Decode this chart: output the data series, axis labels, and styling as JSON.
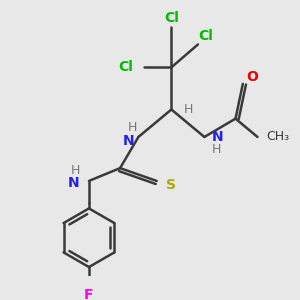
{
  "bg_color": "#e8e8e8",
  "bond_color": "#3a3a3a",
  "bond_width": 1.8,
  "figsize": [
    3.0,
    3.0
  ],
  "dpi": 100,
  "colors": {
    "Cl": "#00bb00",
    "N": "#2222ee",
    "H": "#777777",
    "S": "#aaaa00",
    "O": "#ee0000",
    "F": "#ff00ff",
    "C": "#3a3a3a",
    "bond": "#3a3a3a"
  }
}
